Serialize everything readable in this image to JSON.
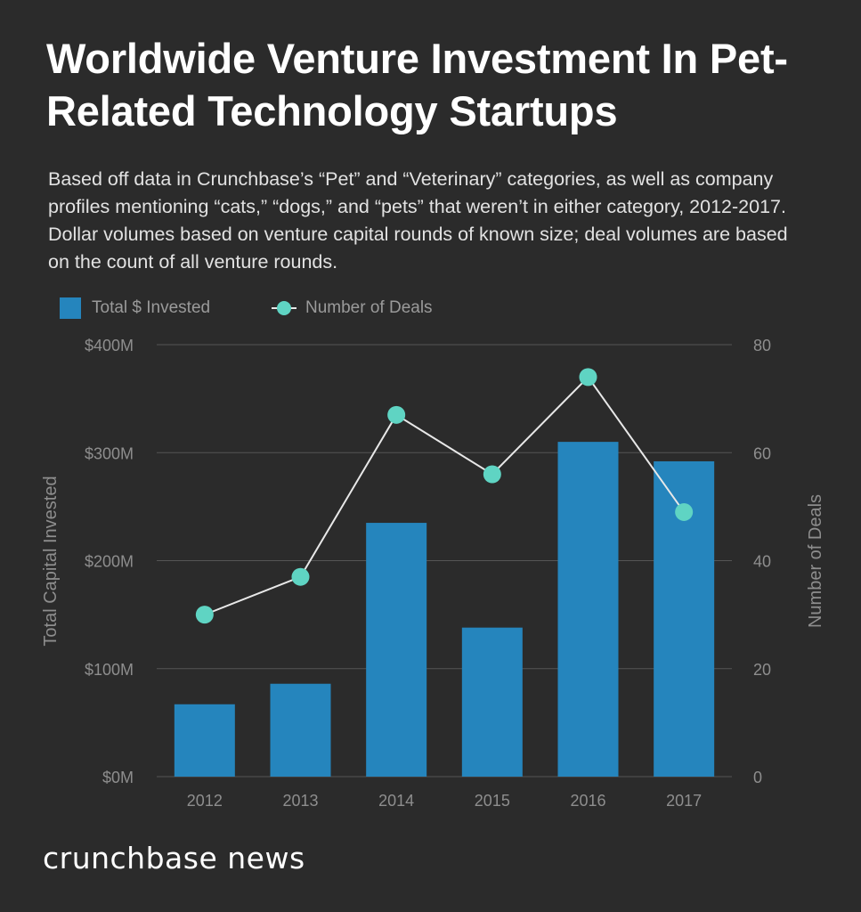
{
  "title": "Worldwide Venture Investment In Pet-Related Technology Startups",
  "subtitle": "Based off data in Crunchbase’s “Pet” and “Veterinary” categories, as well as company profiles mentioning “cats,” “dogs,” and “pets” that weren’t in either category, 2012-2017. Dollar volumes based on venture capital rounds of known size; deal volumes are based on the count of all venture rounds.",
  "legend": {
    "bars_label": "Total $ Invested",
    "line_label": "Number of Deals"
  },
  "brand": "crunchbase news",
  "colors": {
    "background": "#2b2b2b",
    "bar": "#2585bd",
    "line": "#e8e8e8",
    "dot": "#5fd4c3",
    "grid": "#555555",
    "tick": "#8e8e8e"
  },
  "chart_data": {
    "type": "bar",
    "categories": [
      "2012",
      "2013",
      "2014",
      "2015",
      "2016",
      "2017"
    ],
    "series": [
      {
        "name": "Total $ Invested",
        "type": "bar",
        "axis": "left",
        "values": [
          67,
          86,
          235,
          138,
          310,
          292
        ]
      },
      {
        "name": "Number of Deals",
        "type": "line",
        "axis": "right",
        "values": [
          30,
          37,
          67,
          56,
          74,
          49
        ]
      }
    ],
    "ylabel": "Total Capital Invested",
    "y2label": "Number of Deals",
    "ylim": [
      0,
      400
    ],
    "y2lim": [
      0,
      80
    ],
    "yticks": [
      "$0M",
      "$100M",
      "$200M",
      "$300M",
      "$400M"
    ],
    "y2ticks": [
      "0",
      "20",
      "40",
      "60",
      "80"
    ],
    "grid": true,
    "legend_position": "top-left"
  }
}
